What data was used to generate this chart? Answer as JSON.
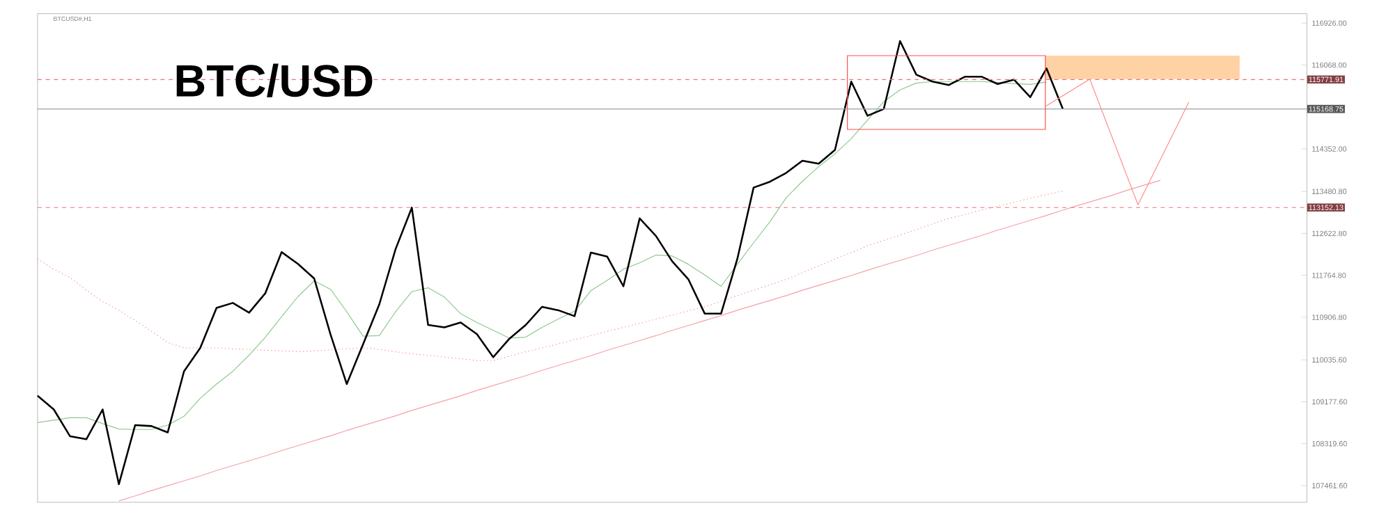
{
  "chart_data": {
    "type": "line",
    "title": "BTC/USD",
    "subtitle": "BTCUSD#,H1",
    "tick_labels": "y",
    "categories": [
      null,
      null,
      null,
      null,
      null,
      null,
      null,
      null,
      null,
      null,
      null,
      null,
      null,
      null,
      null,
      null,
      null,
      null,
      null,
      null,
      null,
      null,
      null,
      null,
      null,
      null,
      null,
      null,
      null,
      null,
      null,
      null,
      null,
      null,
      null,
      null,
      null,
      null,
      null,
      null,
      null,
      null,
      null,
      null,
      null,
      null,
      null,
      null,
      null,
      null,
      null,
      null,
      null,
      null,
      null,
      null,
      null,
      null,
      null,
      null,
      null,
      null,
      null,
      null,
      null,
      null,
      null,
      null,
      null,
      null,
      null,
      null,
      null,
      null,
      null,
      null,
      null,
      null,
      null
    ],
    "ylim": [
      107120,
      117120
    ],
    "yticks": [
      {
        "value": 116926,
        "label": "116926.00"
      },
      {
        "value": 116068,
        "label": "116068.00"
      },
      {
        "value": 114352,
        "label": "114352.00"
      },
      {
        "value": 113480.8,
        "label": "113480.80"
      },
      {
        "value": 112622.8,
        "label": "112622.80"
      },
      {
        "value": 111764.8,
        "label": "111764.80"
      },
      {
        "value": 110906.8,
        "label": "110906.80"
      },
      {
        "value": 110035.6,
        "label": "110035.60"
      },
      {
        "value": 109177.6,
        "label": "109177.60"
      },
      {
        "value": 108319.6,
        "label": "108319.60"
      },
      {
        "value": 107461.6,
        "label": "107461.60"
      }
    ],
    "ref_lines": [
      {
        "axis": "y",
        "value": 115771.91,
        "label": "115771.91",
        "color": "#f07078",
        "line_style": "dashed"
      },
      {
        "axis": "y",
        "value": 115168.75,
        "label": "115168.75",
        "color": "#a0a0a0",
        "line_style": "solid"
      },
      {
        "axis": "y",
        "value": 113152.13,
        "label": "113152.13",
        "color": "#f07078",
        "line_style": "dashed"
      }
    ],
    "series": [
      {
        "color": "#f08080",
        "line_style": "dotted",
        "values": [
          112100,
          111890,
          111720,
          111460,
          111230,
          111050,
          110840,
          110620,
          110390,
          110280,
          110280,
          110280,
          110260,
          110250,
          110230,
          110220,
          110200,
          110220,
          110240,
          110260,
          110280,
          110250,
          110200,
          110160,
          110130,
          110090,
          110060,
          110020,
          110020,
          110110,
          110200,
          110280,
          110360,
          110450,
          110530,
          110620,
          110700,
          110780,
          110870,
          110950,
          111040,
          111120,
          111230,
          111350,
          111460,
          111570,
          111680,
          111820,
          111960,
          112100,
          112230,
          112370,
          112480,
          112590,
          112700,
          112820,
          112930,
          113010,
          113100,
          113180,
          113260,
          113340,
          113420,
          113490,
          null,
          null,
          null,
          null,
          null,
          null,
          null,
          null,
          null,
          null,
          null,
          null,
          null,
          null,
          null
        ]
      },
      {
        "color": "#f4a0a8",
        "values": [
          null,
          null,
          null,
          null,
          null,
          107150,
          107250,
          107360,
          107460,
          107560,
          107660,
          107770,
          107870,
          107970,
          108070,
          108180,
          108280,
          108380,
          108480,
          108590,
          108690,
          108790,
          108890,
          109000,
          109100,
          109200,
          109300,
          109410,
          109510,
          109610,
          109710,
          109820,
          109920,
          110020,
          110120,
          110230,
          110330,
          110430,
          110530,
          110640,
          110740,
          110840,
          110940,
          111050,
          111150,
          111250,
          111350,
          111460,
          111560,
          111660,
          111760,
          111870,
          111970,
          112070,
          112170,
          112280,
          112380,
          112480,
          112580,
          112690,
          112790,
          112890,
          112990,
          113100,
          113200,
          113300,
          113400,
          113510,
          113610,
          113710,
          null,
          null,
          null,
          null,
          null,
          null,
          null,
          null,
          null
        ]
      },
      {
        "color": "#8fc88f",
        "values": [
          108750,
          108800,
          108850,
          108850,
          108730,
          108620,
          108610,
          108610,
          108700,
          108880,
          109250,
          109540,
          109800,
          110130,
          110500,
          110920,
          111330,
          111650,
          111480,
          111020,
          110520,
          110530,
          111020,
          111430,
          111510,
          111320,
          110980,
          110800,
          110640,
          110480,
          110500,
          110700,
          110870,
          111030,
          111450,
          111660,
          111890,
          112020,
          112180,
          112160,
          111990,
          111770,
          111540,
          111990,
          112430,
          112860,
          113350,
          113690,
          113990,
          114250,
          114560,
          114940,
          115320,
          115560,
          115700,
          115730,
          115730,
          115730,
          115730,
          115710,
          115690,
          115670,
          115720,
          null,
          null,
          null,
          null,
          null,
          null,
          null,
          null,
          null,
          null,
          null,
          null,
          null,
          null,
          null,
          null
        ]
      },
      {
        "color": "#000000",
        "values": [
          109300,
          109020,
          108470,
          108410,
          109020,
          107490,
          108700,
          108680,
          108550,
          109800,
          110280,
          111100,
          111200,
          111000,
          111400,
          112240,
          112000,
          111700,
          110560,
          109540,
          110350,
          111170,
          112300,
          113150,
          110750,
          110700,
          110800,
          110560,
          110090,
          110470,
          110750,
          111120,
          111050,
          110930,
          112230,
          112150,
          111540,
          112930,
          112570,
          112050,
          111680,
          110980,
          110980,
          112100,
          113560,
          113680,
          113860,
          114110,
          114050,
          114330,
          115730,
          115030,
          115170,
          116560,
          115870,
          115730,
          115660,
          115830,
          115830,
          115680,
          115770,
          115410,
          116000,
          115170,
          null,
          null,
          null,
          null,
          null,
          null,
          null,
          null,
          null,
          null,
          null,
          null,
          null,
          null,
          null
        ]
      }
    ]
  }
}
